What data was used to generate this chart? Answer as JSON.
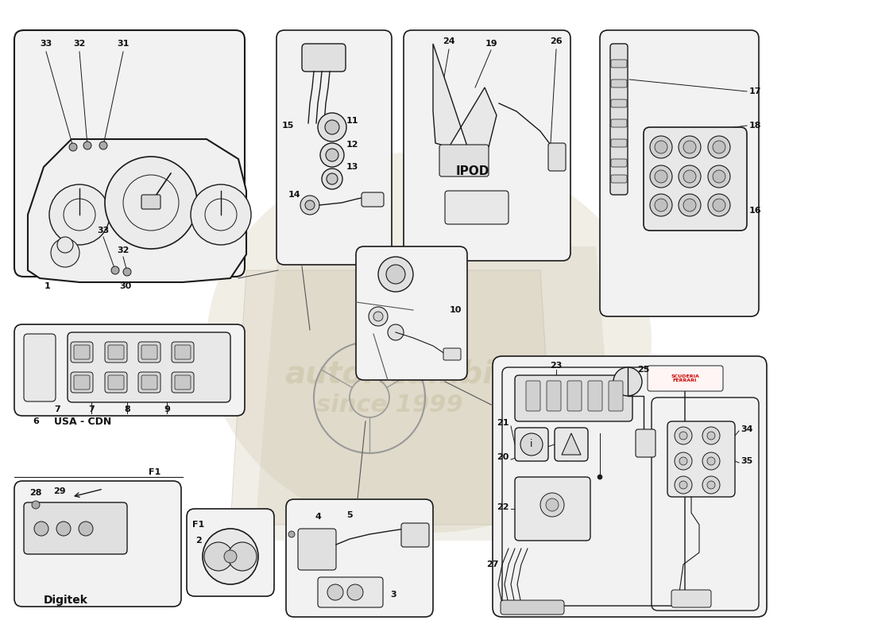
{
  "bg_color": "#ffffff",
  "line_color": "#1a1a1a",
  "text_color": "#111111",
  "gray_fill": "#e8e8e8",
  "light_fill": "#f2f2f2",
  "fig_w": 11.0,
  "fig_h": 8.0,
  "dpi": 100,
  "watermark_lines": [
    "autoricambi",
    "since 1999"
  ],
  "watermark_color": "#c8c0a0",
  "ipod_label": "IPOD",
  "usa_cdn_label": "USA - CDN",
  "digitek_label": "Digitek",
  "f1_label": "F1"
}
